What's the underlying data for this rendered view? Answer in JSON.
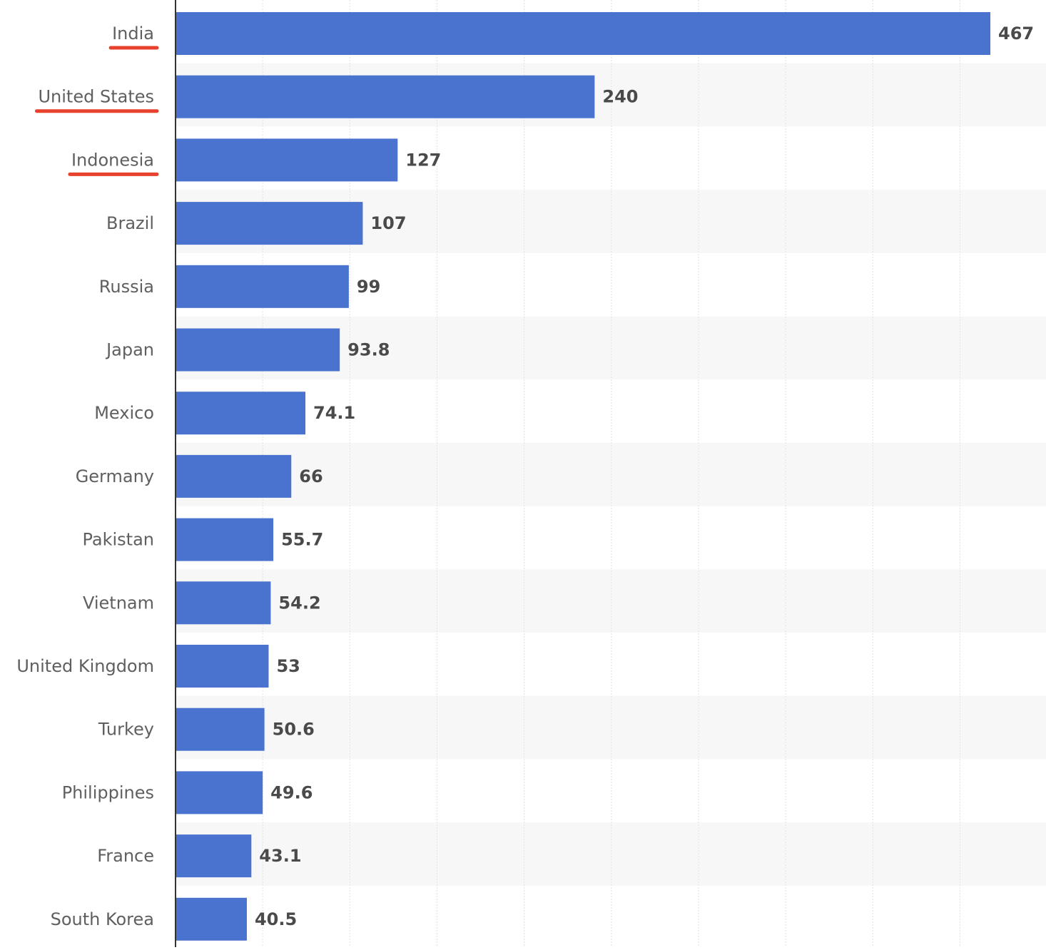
{
  "chart_data": {
    "type": "bar",
    "orientation": "horizontal",
    "categories": [
      "India",
      "United States",
      "Indonesia",
      "Brazil",
      "Russia",
      "Japan",
      "Mexico",
      "Germany",
      "Pakistan",
      "Vietnam",
      "United Kingdom",
      "Turkey",
      "Philippines",
      "France",
      "South Korea"
    ],
    "values": [
      467,
      240,
      127,
      107,
      99,
      93.8,
      74.1,
      66,
      55.7,
      54.2,
      53,
      50.6,
      49.6,
      43.1,
      40.5
    ],
    "value_labels": [
      "467",
      "240",
      "127",
      "107",
      "99",
      "93.8",
      "74.1",
      "66",
      "55.7",
      "54.2",
      "53",
      "50.6",
      "49.6",
      "43.1",
      "40.5"
    ],
    "highlighted_categories": [
      "India",
      "United States",
      "Indonesia"
    ],
    "xlim": [
      0,
      500
    ],
    "grid": true,
    "bar_color": "#4a72cf",
    "highlight_color": "#e8422e",
    "band_color": "#f7f7f7"
  }
}
